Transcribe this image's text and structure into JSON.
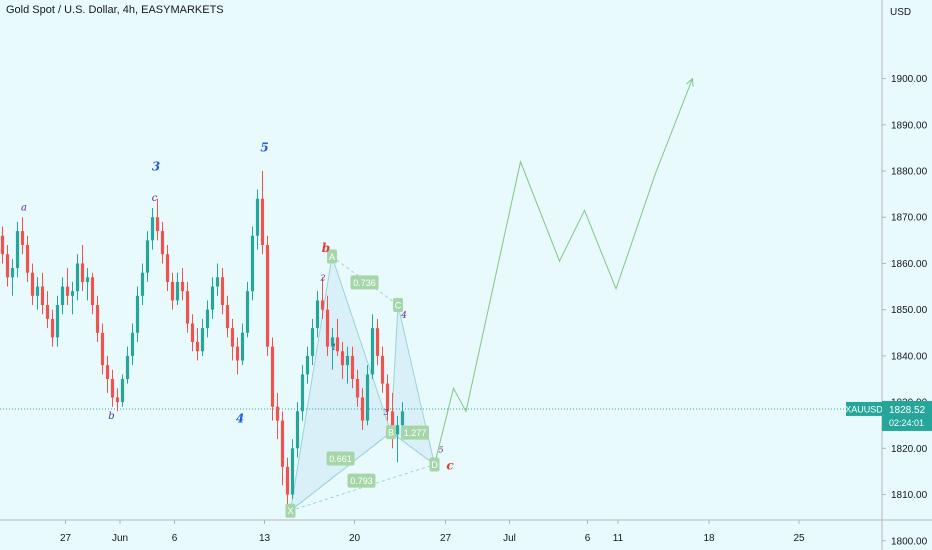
{
  "header": {
    "title": "Gold Spot / U.S. Dollar, 4h, EASYMARKETS"
  },
  "colors": {
    "background": "#e8fafc",
    "up_candle": "#26a69a",
    "down_candle": "#ef5350",
    "projection": "#81c784",
    "pattern_fill": "#cde8f4",
    "pattern_line": "#9ad3d8",
    "label_bg": "#a5d6a7",
    "price_tag": "#26a69a",
    "wave_blue": "#1e5fd8",
    "wave_purple": "#5b2c8f",
    "wave_red": "#e53935"
  },
  "price_axis": {
    "currency": "USD",
    "current_symbol": "XAUUSD",
    "current_price": "1828.52",
    "countdown": "02:24:01"
  },
  "wave_labels": [
    {
      "text": "a",
      "x": 4.3,
      "y": 1871.5,
      "color": "purple",
      "size": 10
    },
    {
      "text": "b",
      "x": 21.8,
      "y": 1826.3,
      "color": "purple",
      "size": 10
    },
    {
      "text": "3",
      "x": 30.7,
      "y": 1880.1,
      "color": "blue",
      "size": 12
    },
    {
      "text": "c",
      "x": 30.4,
      "y": 1873.5,
      "color": "purple",
      "size": 10
    },
    {
      "text": "4",
      "x": 47.5,
      "y": 1825.6,
      "color": "blue",
      "size": 12
    },
    {
      "text": "5",
      "x": 52.4,
      "y": 1884.2,
      "color": "blue",
      "size": 12
    },
    {
      "text": "b",
      "x": 64.7,
      "y": 1862.5,
      "color": "red",
      "size": 12
    },
    {
      "text": "2",
      "x": 64.1,
      "y": 1856.3,
      "color": "purple",
      "size": 8
    },
    {
      "text": "1",
      "x": 66.3,
      "y": 1841.3,
      "color": "purple",
      "size": 8
    },
    {
      "text": "4",
      "x": 80.3,
      "y": 1848.2,
      "color": "purple",
      "size": 9
    },
    {
      "text": "3",
      "x": 76.7,
      "y": 1827.2,
      "color": "purple",
      "size": 8
    },
    {
      "text": "5",
      "x": 87.7,
      "y": 1819.1,
      "color": "purple",
      "size": 8
    },
    {
      "text": "c",
      "x": 89.5,
      "y": 1815.4,
      "color": "red",
      "size": 12
    }
  ],
  "pattern_points": [
    {
      "label": "X",
      "x": 57.6,
      "y": 1806.5
    },
    {
      "label": "A",
      "x": 65.9,
      "y": 1861.5
    },
    {
      "label": "B",
      "x": 77.7,
      "y": 1823.5
    },
    {
      "label": "C",
      "x": 79.1,
      "y": 1851.0
    },
    {
      "label": "D",
      "x": 86.4,
      "y": 1816.5
    }
  ],
  "pattern_ratios": [
    {
      "text": "0.736",
      "x": 72.4,
      "y": 1855.9
    },
    {
      "text": "1.277",
      "x": 82.5,
      "y": 1823.4
    },
    {
      "text": "0.661",
      "x": 67.6,
      "y": 1817.8
    },
    {
      "text": "0.793",
      "x": 71.8,
      "y": 1813.0
    }
  ],
  "chart_data": {
    "type": "candlestick",
    "title": "Gold Spot / U.S. Dollar, 4h, EASYMARKETS",
    "timeframe": "4h",
    "ylabel": "USD",
    "ylim": [
      1798,
      1917
    ],
    "y_ticks": [
      "1800.00",
      "1810.00",
      "1820.00",
      "1830.00",
      "1840.00",
      "1850.00",
      "1860.00",
      "1870.00",
      "1880.00",
      "1890.00",
      "1900.00"
    ],
    "x_ticks": [
      {
        "label": "27",
        "x": 12.6
      },
      {
        "label": "Jun",
        "x": 23.5
      },
      {
        "label": "6",
        "x": 34.4
      },
      {
        "label": "13",
        "x": 52.4
      },
      {
        "label": "20",
        "x": 70.4
      },
      {
        "label": "27",
        "x": 88.6
      },
      {
        "label": "Jul",
        "x": 101.4
      },
      {
        "label": "6",
        "x": 117.0
      },
      {
        "label": "11",
        "x": 123.1
      },
      {
        "label": "18",
        "x": 141.3
      },
      {
        "label": "25",
        "x": 159.3
      }
    ],
    "ohlc": [
      [
        1866,
        1868,
        1860,
        1862
      ],
      [
        1862,
        1864,
        1855,
        1857
      ],
      [
        1857,
        1861,
        1853,
        1859
      ],
      [
        1859,
        1869,
        1857,
        1867
      ],
      [
        1867,
        1870,
        1862,
        1864
      ],
      [
        1864,
        1866,
        1856,
        1858
      ],
      [
        1858,
        1860,
        1851,
        1853
      ],
      [
        1853,
        1857,
        1850,
        1855
      ],
      [
        1855,
        1858,
        1849,
        1851
      ],
      [
        1851,
        1854,
        1846,
        1848
      ],
      [
        1848,
        1850,
        1842,
        1844
      ],
      [
        1844,
        1853,
        1842,
        1851
      ],
      [
        1851,
        1857,
        1849,
        1855
      ],
      [
        1855,
        1859,
        1851,
        1853
      ],
      [
        1853,
        1856,
        1849,
        1854
      ],
      [
        1854,
        1862,
        1852,
        1860
      ],
      [
        1860,
        1864,
        1854,
        1856
      ],
      [
        1856,
        1859,
        1852,
        1857
      ],
      [
        1857,
        1858,
        1849,
        1851
      ],
      [
        1851,
        1853,
        1843,
        1845
      ],
      [
        1845,
        1847,
        1836,
        1838
      ],
      [
        1838,
        1840,
        1832,
        1835
      ],
      [
        1835,
        1837,
        1829,
        1831
      ],
      [
        1831,
        1833,
        1828,
        1830
      ],
      [
        1830,
        1836,
        1829,
        1835
      ],
      [
        1835,
        1842,
        1834,
        1840
      ],
      [
        1840,
        1847,
        1838,
        1845
      ],
      [
        1845,
        1855,
        1843,
        1853
      ],
      [
        1853,
        1860,
        1851,
        1858
      ],
      [
        1858,
        1867,
        1856,
        1865
      ],
      [
        1865,
        1872,
        1863,
        1870
      ],
      [
        1870,
        1874,
        1865,
        1867
      ],
      [
        1867,
        1869,
        1860,
        1862
      ],
      [
        1862,
        1864,
        1854,
        1856
      ],
      [
        1856,
        1858,
        1850,
        1852
      ],
      [
        1852,
        1858,
        1851,
        1856
      ],
      [
        1856,
        1859,
        1852,
        1854
      ],
      [
        1854,
        1856,
        1845,
        1847
      ],
      [
        1847,
        1849,
        1841,
        1843
      ],
      [
        1843,
        1846,
        1839,
        1841
      ],
      [
        1841,
        1848,
        1840,
        1846
      ],
      [
        1846,
        1852,
        1844,
        1850
      ],
      [
        1850,
        1857,
        1848,
        1855
      ],
      [
        1855,
        1860,
        1853,
        1857
      ],
      [
        1857,
        1859,
        1849,
        1851
      ],
      [
        1851,
        1853,
        1844,
        1846
      ],
      [
        1846,
        1848,
        1839,
        1842
      ],
      [
        1842,
        1844,
        1836,
        1839
      ],
      [
        1839,
        1847,
        1838,
        1845
      ],
      [
        1845,
        1856,
        1844,
        1854
      ],
      [
        1854,
        1868,
        1852,
        1866
      ],
      [
        1866,
        1876,
        1863,
        1874
      ],
      [
        1874,
        1880,
        1862,
        1864
      ],
      [
        1864,
        1866,
        1840,
        1842
      ],
      [
        1842,
        1844,
        1826,
        1829
      ],
      [
        1829,
        1832,
        1822,
        1826
      ],
      [
        1826,
        1828,
        1812,
        1816
      ],
      [
        1816,
        1818,
        1807,
        1810
      ],
      [
        1810,
        1822,
        1809,
        1820
      ],
      [
        1820,
        1830,
        1818,
        1828
      ],
      [
        1828,
        1838,
        1826,
        1836
      ],
      [
        1836,
        1842,
        1834,
        1840
      ],
      [
        1840,
        1848,
        1838,
        1846
      ],
      [
        1846,
        1854,
        1844,
        1852
      ],
      [
        1852,
        1857,
        1848,
        1850
      ],
      [
        1850,
        1853,
        1840,
        1842
      ],
      [
        1842,
        1846,
        1837,
        1844
      ],
      [
        1844,
        1848,
        1840,
        1841
      ],
      [
        1841,
        1843,
        1835,
        1838
      ],
      [
        1838,
        1842,
        1834,
        1840
      ],
      [
        1840,
        1842,
        1833,
        1835
      ],
      [
        1835,
        1837,
        1829,
        1831
      ],
      [
        1831,
        1833,
        1824,
        1826
      ],
      [
        1826,
        1838,
        1825,
        1836
      ],
      [
        1836,
        1849,
        1835,
        1846
      ],
      [
        1846,
        1848,
        1838,
        1840
      ],
      [
        1840,
        1842,
        1832,
        1834
      ],
      [
        1834,
        1836,
        1826,
        1828
      ],
      [
        1828,
        1832,
        1820,
        1823
      ],
      [
        1823,
        1827,
        1817,
        1825
      ],
      [
        1825,
        1830,
        1824,
        1828
      ]
    ],
    "projection": {
      "x": [
        86.4,
        90.2,
        92.7,
        103.6,
        111.4,
        116.4,
        122.7,
        130.6,
        138.0
      ],
      "y": [
        1816.5,
        1833.0,
        1828.0,
        1882.0,
        1860.5,
        1871.5,
        1854.5,
        1879.5,
        1900.0
      ]
    },
    "current_price": 1828.52
  }
}
